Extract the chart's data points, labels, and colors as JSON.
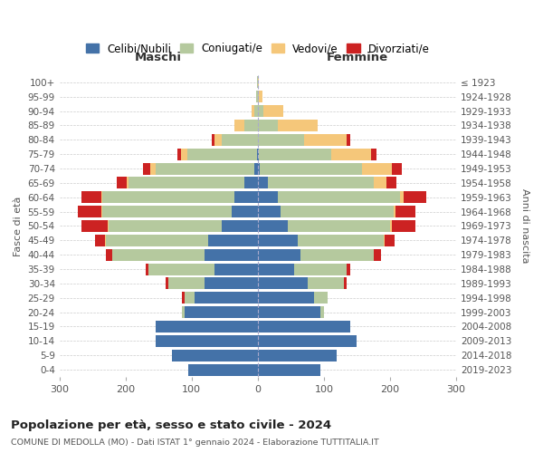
{
  "age_groups": [
    "0-4",
    "5-9",
    "10-14",
    "15-19",
    "20-24",
    "25-29",
    "30-34",
    "35-39",
    "40-44",
    "45-49",
    "50-54",
    "55-59",
    "60-64",
    "65-69",
    "70-74",
    "75-79",
    "80-84",
    "85-89",
    "90-94",
    "95-99",
    "100+"
  ],
  "birth_years": [
    "2019-2023",
    "2014-2018",
    "2009-2013",
    "2004-2008",
    "1999-2003",
    "1994-1998",
    "1989-1993",
    "1984-1988",
    "1979-1983",
    "1974-1978",
    "1969-1973",
    "1964-1968",
    "1959-1963",
    "1954-1958",
    "1949-1953",
    "1944-1948",
    "1939-1943",
    "1934-1938",
    "1929-1933",
    "1924-1928",
    "≤ 1923"
  ],
  "male": {
    "celibi": [
      105,
      130,
      155,
      155,
      110,
      95,
      80,
      65,
      80,
      75,
      55,
      40,
      35,
      20,
      5,
      1,
      0,
      0,
      0,
      0,
      0
    ],
    "coniugati": [
      0,
      0,
      0,
      0,
      5,
      15,
      55,
      100,
      140,
      155,
      170,
      195,
      200,
      175,
      150,
      105,
      55,
      20,
      5,
      2,
      1
    ],
    "vedovi": [
      0,
      0,
      0,
      0,
      0,
      0,
      0,
      0,
      0,
      1,
      2,
      2,
      2,
      3,
      8,
      10,
      10,
      15,
      5,
      1,
      0
    ],
    "divorziati": [
      0,
      0,
      0,
      0,
      0,
      5,
      5,
      5,
      10,
      15,
      40,
      35,
      30,
      15,
      10,
      5,
      5,
      0,
      0,
      0,
      0
    ]
  },
  "female": {
    "nubili": [
      95,
      120,
      150,
      140,
      95,
      85,
      75,
      55,
      65,
      60,
      45,
      35,
      30,
      15,
      3,
      1,
      0,
      0,
      0,
      0,
      0
    ],
    "coniugate": [
      0,
      0,
      0,
      0,
      5,
      20,
      55,
      80,
      110,
      130,
      155,
      170,
      185,
      160,
      155,
      110,
      70,
      30,
      8,
      2,
      0
    ],
    "vedove": [
      0,
      0,
      0,
      0,
      0,
      0,
      0,
      0,
      1,
      2,
      3,
      4,
      5,
      20,
      45,
      60,
      65,
      60,
      30,
      5,
      1
    ],
    "divorziate": [
      0,
      0,
      0,
      0,
      0,
      0,
      5,
      5,
      10,
      15,
      35,
      30,
      35,
      15,
      15,
      8,
      5,
      0,
      0,
      0,
      0
    ]
  },
  "colors": {
    "celibi": "#4472a8",
    "coniugati": "#b5c99e",
    "vedovi": "#f5c77a",
    "divorziati": "#cc2222"
  },
  "title": "Popolazione per età, sesso e stato civile - 2024",
  "subtitle": "COMUNE DI MEDOLLA (MO) - Dati ISTAT 1° gennaio 2024 - Elaborazione TUTTITALIA.IT",
  "xlabel_left": "Maschi",
  "xlabel_right": "Femmine",
  "ylabel_left": "Fasce di età",
  "ylabel_right": "Anni di nascita",
  "xlim": 300,
  "legend_labels": [
    "Celibi/Nubili",
    "Coniugati/e",
    "Vedovi/e",
    "Divorziati/e"
  ],
  "background_color": "#ffffff",
  "grid_color": "#cccccc"
}
